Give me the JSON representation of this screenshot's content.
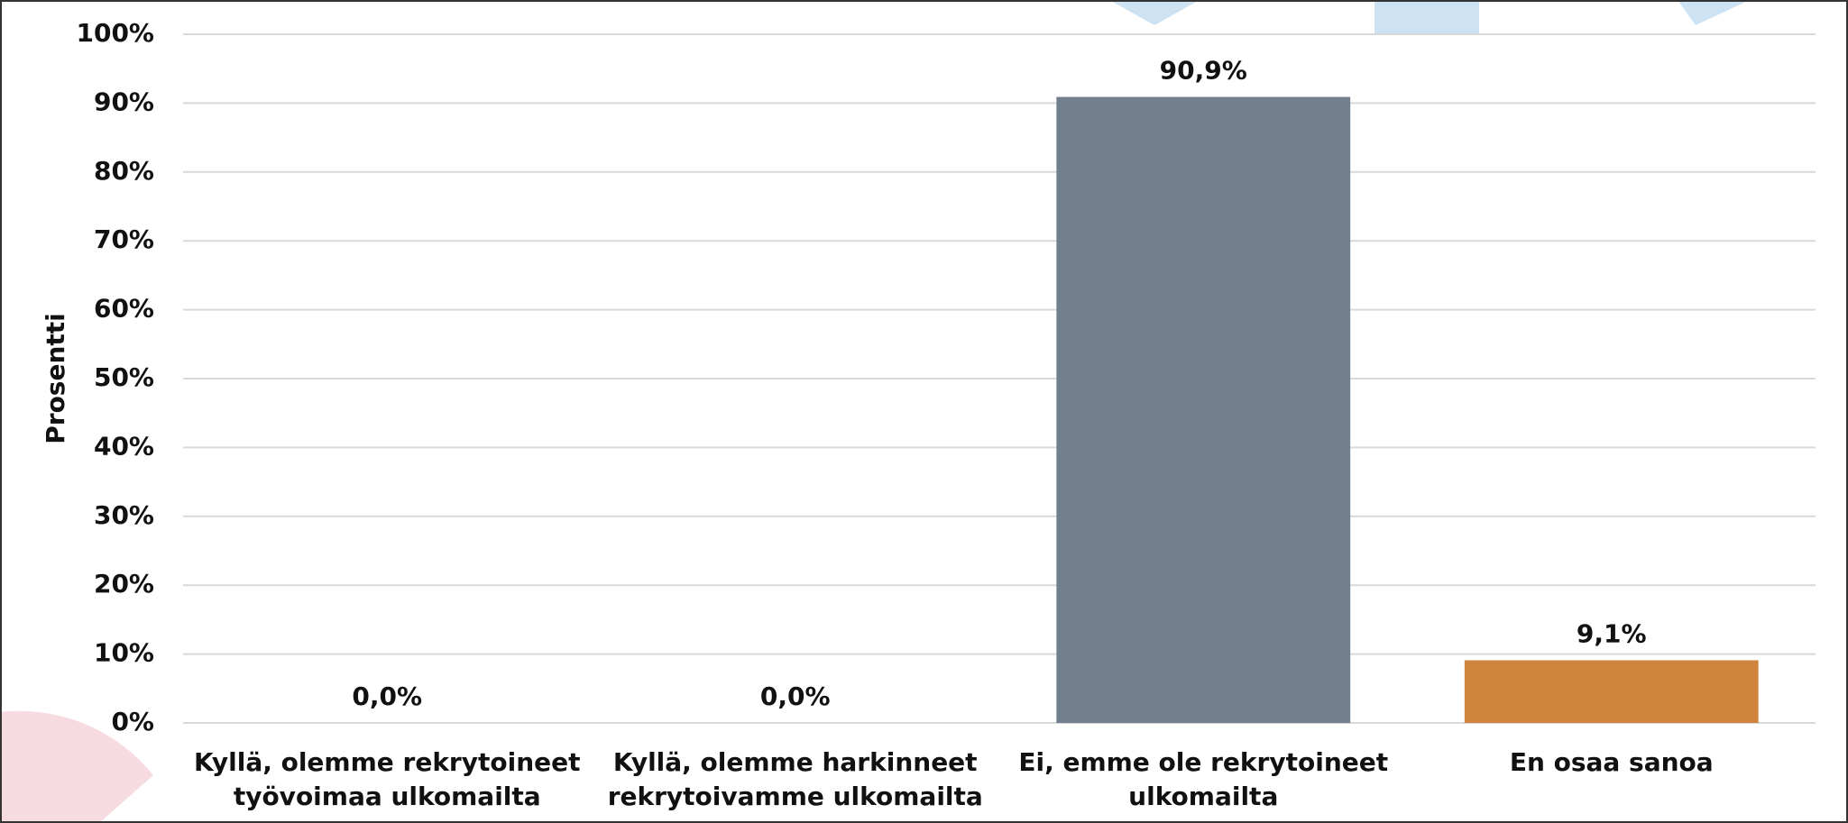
{
  "chart_data": {
    "type": "bar",
    "y_label": "Prosentti",
    "categories": [
      "Kyllä, olemme rekrytoineet työvoimaa ulkomailta",
      "Kyllä, olemme harkinneet rekrytoivamme ulkomailta",
      "Ei, emme ole rekrytoineet ulkomailta",
      "En osaa sanoa"
    ],
    "values": [
      0,
      0,
      90.9,
      9.1
    ],
    "value_labels": [
      "0,0%",
      "0,0%",
      "90,9%",
      "9,1%"
    ],
    "colors": [
      "#4472c4",
      "#ed7d31",
      "#717f8f",
      "#d0843e"
    ],
    "ylim": [
      0,
      100
    ],
    "yticks": [
      {
        "value": 0,
        "label": "0%"
      },
      {
        "value": 10,
        "label": "10%"
      },
      {
        "value": 20,
        "label": "20%"
      },
      {
        "value": 30,
        "label": "30%"
      },
      {
        "value": 40,
        "label": "40%"
      },
      {
        "value": 50,
        "label": "50%"
      },
      {
        "value": 60,
        "label": "60%"
      },
      {
        "value": 70,
        "label": "70%"
      },
      {
        "value": 80,
        "label": "80%"
      },
      {
        "value": 90,
        "label": "90%"
      },
      {
        "value": 100,
        "label": "100%"
      }
    ],
    "grid": true
  }
}
